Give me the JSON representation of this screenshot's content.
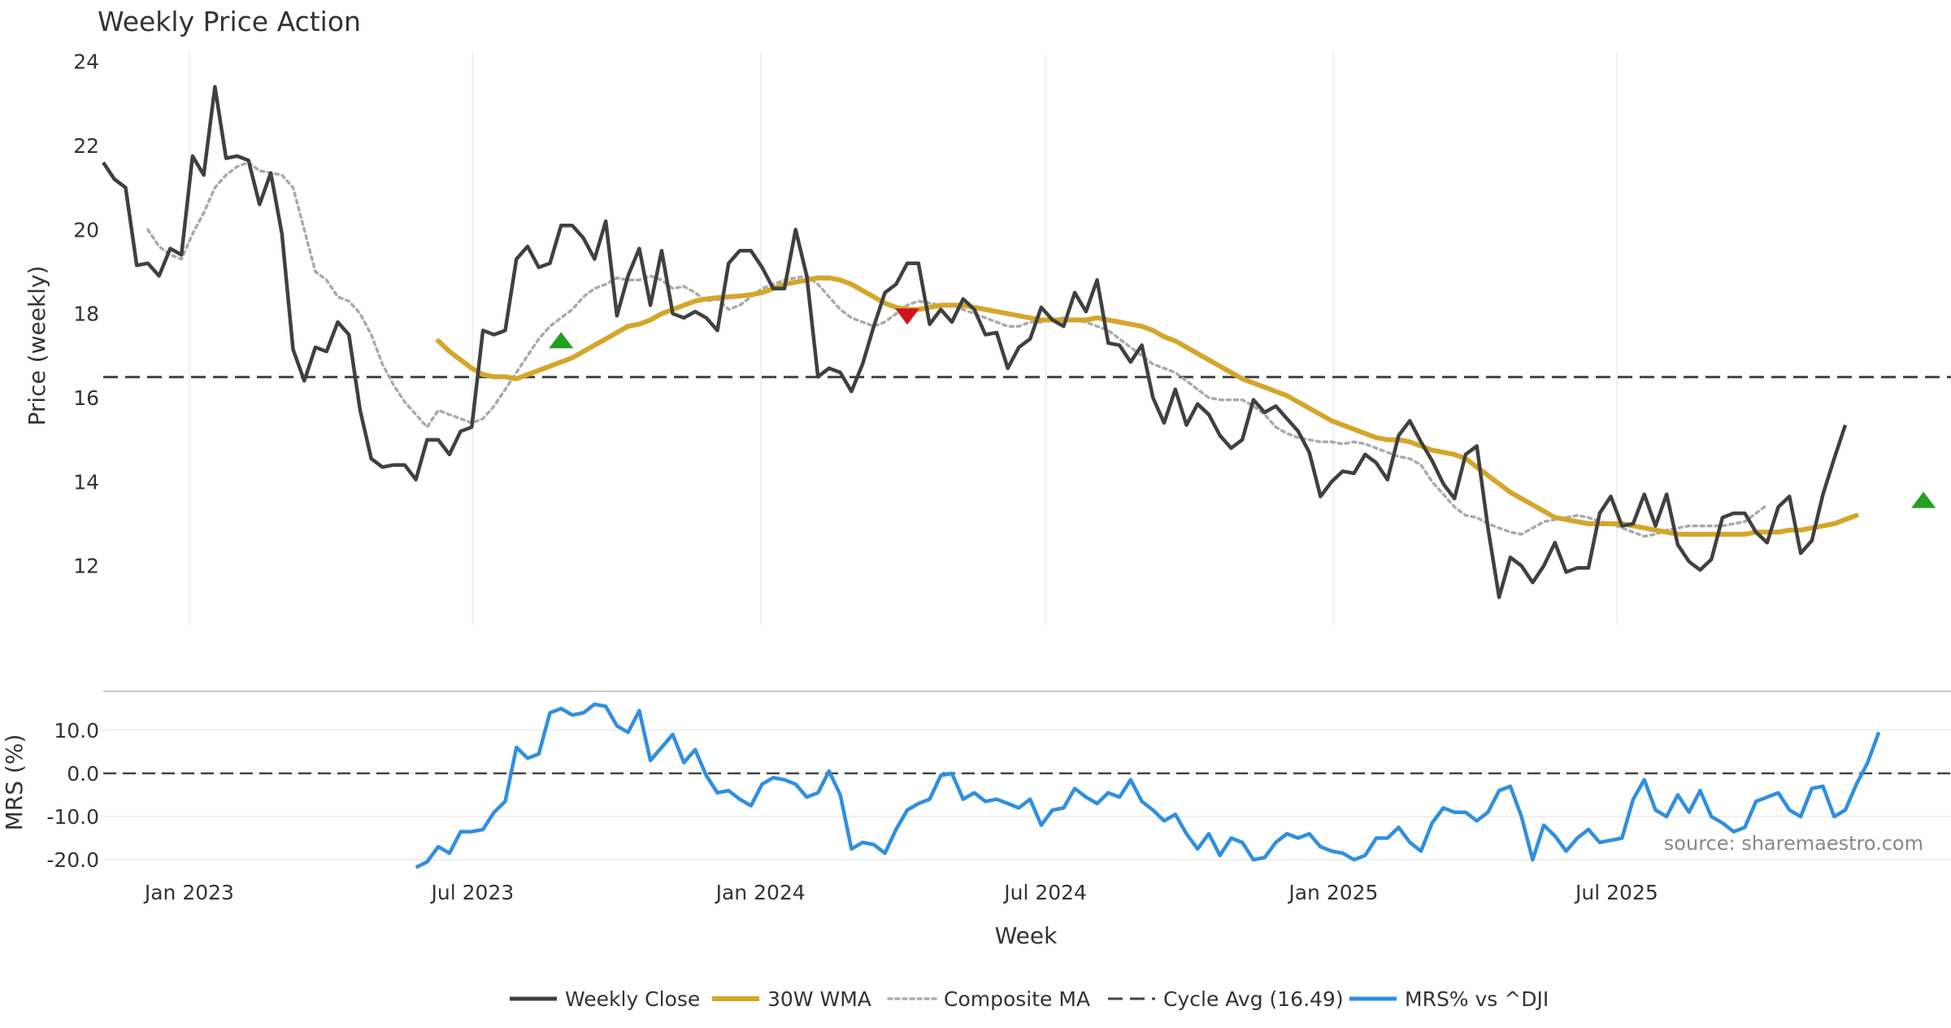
{
  "chart_data": {
    "type": "line",
    "title": "Weekly Price Action",
    "source": "source: sharemaestro.com",
    "xlabel": "Week",
    "x_ticks": [
      "Jan 2023",
      "Jul 2023",
      "Jan 2024",
      "Jul 2024",
      "Jan 2025",
      "Jul 2025"
    ],
    "x_range": [
      "2022-11-07",
      "2025-11-24"
    ],
    "price_panel": {
      "ylabel": "Price (weekly)",
      "ylim": [
        10.6,
        24.4
      ],
      "y_ticks": [
        12,
        14,
        16,
        18,
        20,
        22,
        24
      ],
      "cycle_avg": 16.49,
      "weekly_close": [
        21.6,
        21.2,
        21.0,
        19.15,
        19.2,
        18.9,
        19.55,
        19.4,
        21.75,
        21.3,
        23.4,
        21.7,
        21.75,
        21.65,
        20.6,
        21.35,
        19.9,
        17.15,
        16.4,
        17.2,
        17.1,
        17.8,
        17.5,
        15.7,
        14.55,
        14.35,
        14.4,
        14.4,
        14.05,
        15.0,
        15.0,
        14.65,
        15.2,
        15.3,
        17.6,
        17.5,
        17.6,
        19.3,
        19.6,
        19.1,
        19.2,
        20.1,
        20.1,
        19.8,
        19.3,
        20.2,
        17.95,
        18.9,
        19.55,
        18.2,
        19.5,
        18.0,
        17.9,
        18.05,
        17.9,
        17.6,
        19.2,
        19.5,
        19.5,
        19.1,
        18.6,
        18.6,
        20.0,
        18.9,
        16.5,
        16.7,
        16.6,
        16.15,
        16.8,
        17.7,
        18.5,
        18.7,
        19.2,
        19.2,
        17.75,
        18.1,
        17.8,
        18.35,
        18.1,
        17.5,
        17.55,
        16.7,
        17.2,
        17.4,
        18.15,
        17.85,
        17.7,
        18.5,
        18.05,
        18.8,
        17.3,
        17.25,
        16.85,
        17.25,
        16.0,
        15.4,
        16.2,
        15.35,
        15.85,
        15.6,
        15.1,
        14.8,
        15.0,
        15.95,
        15.65,
        15.8,
        15.5,
        15.2,
        14.7,
        13.65,
        14.0,
        14.25,
        14.2,
        14.65,
        14.45,
        14.05,
        15.1,
        15.45,
        14.95,
        14.5,
        13.95,
        13.6,
        14.65,
        14.85,
        12.9,
        11.25,
        12.2,
        12.0,
        11.6,
        12.0,
        12.55,
        11.85,
        11.95,
        11.95,
        13.25,
        13.65,
        12.95,
        13.0,
        13.7,
        12.95,
        13.7,
        12.5,
        12.1,
        11.9,
        12.15,
        13.15,
        13.25,
        13.25,
        12.8,
        12.55,
        13.4,
        13.65,
        12.3,
        12.6,
        13.7,
        14.55,
        15.35
      ],
      "wma_30w_start_index": 30,
      "wma_30w": [
        17.35,
        17.1,
        16.9,
        16.7,
        16.55,
        16.5,
        16.5,
        16.45,
        16.55,
        16.65,
        16.75,
        16.85,
        16.95,
        17.1,
        17.25,
        17.4,
        17.55,
        17.7,
        17.75,
        17.85,
        18.0,
        18.1,
        18.2,
        18.3,
        18.35,
        18.38,
        18.4,
        18.42,
        18.45,
        18.5,
        18.6,
        18.7,
        18.75,
        18.8,
        18.85,
        18.85,
        18.8,
        18.7,
        18.55,
        18.4,
        18.25,
        18.15,
        18.1,
        18.1,
        18.15,
        18.2,
        18.2,
        18.2,
        18.15,
        18.1,
        18.05,
        18.0,
        17.95,
        17.9,
        17.85,
        17.85,
        17.85,
        17.85,
        17.85,
        17.9,
        17.85,
        17.8,
        17.75,
        17.7,
        17.6,
        17.45,
        17.35,
        17.2,
        17.05,
        16.9,
        16.75,
        16.6,
        16.45,
        16.35,
        16.25,
        16.15,
        16.05,
        15.9,
        15.75,
        15.6,
        15.45,
        15.35,
        15.25,
        15.15,
        15.05,
        15.0,
        15.0,
        14.95,
        14.85,
        14.75,
        14.7,
        14.65,
        14.55,
        14.35,
        14.15,
        13.95,
        13.75,
        13.6,
        13.45,
        13.3,
        13.15,
        13.1,
        13.05,
        13.0,
        13.0,
        13.0,
        13.0,
        12.95,
        12.9,
        12.85,
        12.8,
        12.75,
        12.75,
        12.75,
        12.75,
        12.75,
        12.75,
        12.75,
        12.8,
        12.8,
        12.8,
        12.85,
        12.85,
        12.9,
        12.95,
        13.0,
        13.1,
        13.2
      ],
      "composite_ma_start_index": 4,
      "composite_ma": [
        20.0,
        19.6,
        19.4,
        19.3,
        19.9,
        20.4,
        21.0,
        21.3,
        21.5,
        21.6,
        21.4,
        21.35,
        21.3,
        21.0,
        20.0,
        19.0,
        18.8,
        18.4,
        18.3,
        18.0,
        17.5,
        16.8,
        16.3,
        15.9,
        15.6,
        15.3,
        15.7,
        15.6,
        15.5,
        15.4,
        15.5,
        15.8,
        16.2,
        16.6,
        17.0,
        17.4,
        17.7,
        17.9,
        18.1,
        18.4,
        18.6,
        18.7,
        18.85,
        18.8,
        18.8,
        18.9,
        18.8,
        18.6,
        18.65,
        18.5,
        18.3,
        18.35,
        18.1,
        18.2,
        18.4,
        18.6,
        18.7,
        18.8,
        18.85,
        18.9,
        18.7,
        18.4,
        18.1,
        17.9,
        17.8,
        17.7,
        17.8,
        18.0,
        18.2,
        18.3,
        18.25,
        18.2,
        18.2,
        18.1,
        18.0,
        17.9,
        17.8,
        17.7,
        17.7,
        17.8,
        17.8,
        17.85,
        17.9,
        17.85,
        17.8,
        17.7,
        17.6,
        17.4,
        17.2,
        17.0,
        16.8,
        16.7,
        16.6,
        16.4,
        16.2,
        16.0,
        15.95,
        15.95,
        15.95,
        15.8,
        15.6,
        15.3,
        15.15,
        15.05,
        15.0,
        14.95,
        14.95,
        14.9,
        14.95,
        14.9,
        14.8,
        14.7,
        14.6,
        14.55,
        14.4,
        14.0,
        13.7,
        13.4,
        13.2,
        13.15,
        13.0,
        12.9,
        12.8,
        12.75,
        12.9,
        13.05,
        13.1,
        13.15,
        13.2,
        13.15,
        13.05,
        13.0,
        12.9,
        12.8,
        12.7,
        12.75,
        12.85,
        12.9,
        12.95,
        12.95,
        12.95,
        12.95,
        13.0,
        13.05,
        13.25,
        13.45
      ],
      "signals": [
        {
          "type": "buy",
          "index": 41,
          "value": 17.35,
          "color": "#22a01e"
        },
        {
          "type": "sell",
          "index": 72,
          "value": 17.95,
          "color": "#d2141e"
        },
        {
          "type": "buy",
          "index": 163,
          "value": 13.55,
          "color": "#22a01e"
        }
      ]
    },
    "mrs_panel": {
      "ylabel": "MRS (%)",
      "ylim": [
        -23,
        19
      ],
      "y_ticks": [
        10.0,
        0.0,
        -10.0,
        -20.0
      ],
      "zero_line": 0.0,
      "start_index": 28,
      "mrs": [
        -21.8,
        -20.5,
        -17.0,
        -18.5,
        -13.5,
        -13.5,
        -13.0,
        -9.0,
        -6.5,
        6.0,
        3.5,
        4.5,
        14.0,
        15.0,
        13.5,
        14.0,
        16.0,
        15.5,
        11.0,
        9.5,
        14.5,
        3.0,
        6.0,
        9.0,
        2.5,
        5.5,
        -0.5,
        -4.5,
        -4.0,
        -6.0,
        -7.5,
        -2.5,
        -1.0,
        -1.5,
        -2.5,
        -5.5,
        -4.5,
        0.5,
        -5.0,
        -17.5,
        -16.0,
        -16.5,
        -18.5,
        -13.0,
        -8.5,
        -7.0,
        -6.0,
        -0.5,
        0.0,
        -6.0,
        -4.5,
        -6.5,
        -6.0,
        -7.0,
        -8.0,
        -6.0,
        -12.0,
        -8.5,
        -8.0,
        -3.5,
        -5.5,
        -7.0,
        -4.5,
        -5.5,
        -1.5,
        -6.5,
        -8.5,
        -11.0,
        -9.5,
        -14.0,
        -17.5,
        -14.0,
        -19.0,
        -15.0,
        -16.0,
        -20.0,
        -19.5,
        -16.0,
        -14.0,
        -15.0,
        -14.0,
        -17.0,
        -18.0,
        -18.5,
        -20.0,
        -19.0,
        -15.0,
        -15.0,
        -12.5,
        -16.0,
        -18.0,
        -11.5,
        -8.0,
        -9.0,
        -9.0,
        -11.0,
        -9.0,
        -4.0,
        -3.0,
        -10.0,
        -20.0,
        -12.0,
        -14.5,
        -18.0,
        -15.0,
        -13.0,
        -16.0,
        -15.5,
        -15.0,
        -6.0,
        -1.5,
        -8.5,
        -10.0,
        -5.0,
        -9.0,
        -4.0,
        -10.0,
        -11.5,
        -13.5,
        -12.5,
        -6.5,
        -5.5,
        -4.5,
        -8.5,
        -10.0,
        -3.5,
        -3.0,
        -10.0,
        -8.5,
        -2.5,
        2.5,
        9.5
      ]
    },
    "series": [
      {
        "name": "Weekly Close",
        "color": "#404040",
        "style": "solid"
      },
      {
        "name": "30W WMA",
        "color": "#d4a62a",
        "style": "solid"
      },
      {
        "name": "Composite MA",
        "color": "#aaaaaa",
        "style": "dotted"
      },
      {
        "name": "Cycle Avg (16.49)",
        "color": "#444444",
        "style": "dashed"
      },
      {
        "name": "MRS% vs ^DJI",
        "color": "#2f8fe0",
        "style": "solid"
      }
    ],
    "legend_position": "bottom-center",
    "grid": true
  }
}
